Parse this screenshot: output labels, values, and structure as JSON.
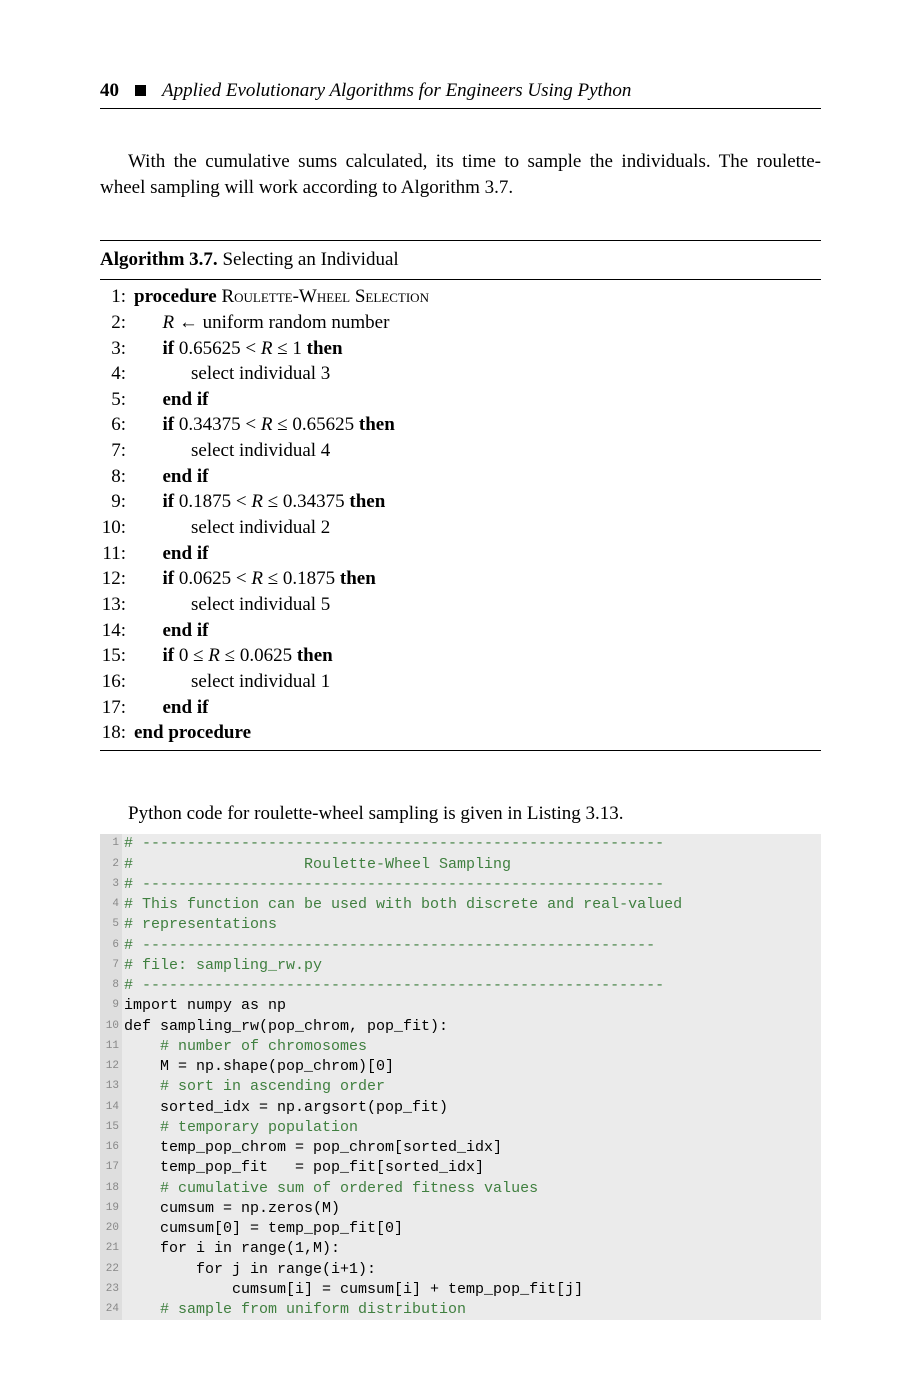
{
  "header": {
    "page_number": "40",
    "running_title": "Applied Evolutionary Algorithms for Engineers Using Python"
  },
  "para1": "With the cumulative sums calculated, its time to sample the individuals. The roulette-wheel sampling will work according to Algorithm 3.7.",
  "algorithm": {
    "label": "Algorithm 3.7.",
    "caption": " Selecting an Individual",
    "lines": [
      {
        "n": "1:",
        "ind": 0,
        "html": "<b>procedure</b> R<span class='sc'>oulette</span>-W<span class='sc'>heel</span> S<span class='sc'>election</span>"
      },
      {
        "n": "2:",
        "ind": 1,
        "html": "<i>R</i> ← uniform random number"
      },
      {
        "n": "3:",
        "ind": 1,
        "html": "<b>if</b> 0.65625 &lt; <i>R</i> ≤ 1 <b>then</b>"
      },
      {
        "n": "4:",
        "ind": 2,
        "html": "select individual 3"
      },
      {
        "n": "5:",
        "ind": 1,
        "html": "<b>end if</b>"
      },
      {
        "n": "6:",
        "ind": 1,
        "html": "<b>if</b> 0.34375 &lt; <i>R</i> ≤ 0.65625 <b>then</b>"
      },
      {
        "n": "7:",
        "ind": 2,
        "html": "select individual 4"
      },
      {
        "n": "8:",
        "ind": 1,
        "html": "<b>end if</b>"
      },
      {
        "n": "9:",
        "ind": 1,
        "html": "<b>if</b> 0.1875 &lt; <i>R</i> ≤ 0.34375 <b>then</b>"
      },
      {
        "n": "10:",
        "ind": 2,
        "html": "select individual 2"
      },
      {
        "n": "11:",
        "ind": 1,
        "html": "<b>end if</b>"
      },
      {
        "n": "12:",
        "ind": 1,
        "html": "<b>if</b> 0.0625 &lt; <i>R</i> ≤ 0.1875 <b>then</b>"
      },
      {
        "n": "13:",
        "ind": 2,
        "html": "select individual 5"
      },
      {
        "n": "14:",
        "ind": 1,
        "html": "<b>end if</b>"
      },
      {
        "n": "15:",
        "ind": 1,
        "html": "<b>if</b> 0 ≤ <i>R</i> ≤ 0.0625 <b>then</b>"
      },
      {
        "n": "16:",
        "ind": 2,
        "html": "select individual 1"
      },
      {
        "n": "17:",
        "ind": 1,
        "html": "<b>end if</b>"
      },
      {
        "n": "18:",
        "ind": 0,
        "html": "<b>end procedure</b>"
      }
    ]
  },
  "para2": "Python code for roulette-wheel sampling is given in Listing 3.13.",
  "code": {
    "background_color": "#ebebeb",
    "gutter_color": "#dedede",
    "line_number_color": "#888888",
    "comment_color": "#3f7f3f",
    "font_size": 15,
    "lines": [
      {
        "n": 1,
        "cmt": true,
        "txt": "# ----------------------------------------------------------"
      },
      {
        "n": 2,
        "cmt": true,
        "txt": "#                   Roulette-Wheel Sampling"
      },
      {
        "n": 3,
        "cmt": true,
        "txt": "# ----------------------------------------------------------"
      },
      {
        "n": 4,
        "cmt": true,
        "txt": "# This function can be used with both discrete and real-valued"
      },
      {
        "n": 5,
        "cmt": true,
        "txt": "# representations"
      },
      {
        "n": 6,
        "cmt": true,
        "txt": "# ---------------------------------------------------------"
      },
      {
        "n": 7,
        "cmt": true,
        "txt": "# file: sampling_rw.py"
      },
      {
        "n": 8,
        "cmt": true,
        "txt": "# ----------------------------------------------------------"
      },
      {
        "n": 9,
        "cmt": false,
        "txt": "import numpy as np"
      },
      {
        "n": 10,
        "cmt": false,
        "txt": "def sampling_rw(pop_chrom, pop_fit):"
      },
      {
        "n": 11,
        "cmt": true,
        "txt": "    # number of chromosomes"
      },
      {
        "n": 12,
        "cmt": false,
        "txt": "    M = np.shape(pop_chrom)[0]"
      },
      {
        "n": 13,
        "cmt": true,
        "txt": "    # sort in ascending order"
      },
      {
        "n": 14,
        "cmt": false,
        "txt": "    sorted_idx = np.argsort(pop_fit)"
      },
      {
        "n": 15,
        "cmt": true,
        "txt": "    # temporary population"
      },
      {
        "n": 16,
        "cmt": false,
        "txt": "    temp_pop_chrom = pop_chrom[sorted_idx]"
      },
      {
        "n": 17,
        "cmt": false,
        "txt": "    temp_pop_fit   = pop_fit[sorted_idx]"
      },
      {
        "n": 18,
        "cmt": true,
        "txt": "    # cumulative sum of ordered fitness values"
      },
      {
        "n": 19,
        "cmt": false,
        "txt": "    cumsum = np.zeros(M)"
      },
      {
        "n": 20,
        "cmt": false,
        "txt": "    cumsum[0] = temp_pop_fit[0]"
      },
      {
        "n": 21,
        "cmt": false,
        "txt": "    for i in range(1,M):"
      },
      {
        "n": 22,
        "cmt": false,
        "txt": "        for j in range(i+1):"
      },
      {
        "n": 23,
        "cmt": false,
        "txt": "            cumsum[i] = cumsum[i] + temp_pop_fit[j]"
      },
      {
        "n": 24,
        "cmt": true,
        "txt": "    # sample from uniform distribution"
      }
    ]
  }
}
